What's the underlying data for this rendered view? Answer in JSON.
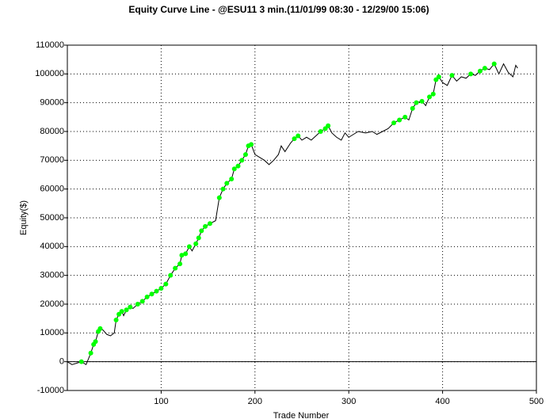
{
  "chart_data": {
    "type": "line",
    "title": "Equity Curve Line - @ESU11 3 min.(11/01/99 08:30 - 12/29/00 15:06)",
    "x_label": "Trade Number",
    "y_label": "Equity($)",
    "xlim": [
      0,
      500
    ],
    "xticks": [
      100,
      200,
      300,
      400,
      500
    ],
    "ylim": [
      -10000,
      110000
    ],
    "yticks": [
      -10000,
      0,
      10000,
      20000,
      30000,
      40000,
      50000,
      60000,
      70000,
      80000,
      90000,
      100000,
      110000
    ],
    "grid": true,
    "series": [
      {
        "color": "#000000",
        "x": [
          0,
          5,
          10,
          15,
          20,
          25,
          28,
          30,
          33,
          35,
          38,
          42,
          46,
          50,
          52,
          55,
          58,
          60,
          63,
          67,
          70,
          75,
          80,
          85,
          90,
          95,
          100,
          105,
          110,
          115,
          120,
          122,
          126,
          130,
          133,
          137,
          140,
          143,
          147,
          152,
          158,
          162,
          166,
          170,
          175,
          178,
          182,
          186,
          190,
          193,
          196,
          200,
          205,
          210,
          215,
          220,
          225,
          228,
          232,
          238,
          242,
          246,
          250,
          255,
          260,
          265,
          270,
          275,
          278,
          282,
          287,
          292,
          296,
          300,
          305,
          310,
          318,
          325,
          330,
          336,
          342,
          348,
          354,
          360,
          364,
          368,
          372,
          378,
          382,
          386,
          390,
          393,
          396,
          400,
          405,
          410,
          415,
          420,
          425,
          430,
          435,
          440,
          445,
          450,
          455,
          460,
          465,
          470,
          475,
          478,
          480
        ],
        "values": [
          0,
          -1000,
          -500,
          0,
          -1000,
          3000,
          6000,
          7000,
          10500,
          11500,
          11000,
          9500,
          9000,
          10000,
          14500,
          16500,
          17500,
          16000,
          18000,
          19000,
          18500,
          20000,
          21000,
          22500,
          23500,
          24500,
          25500,
          27000,
          30000,
          32500,
          34000,
          37000,
          37500,
          40000,
          38500,
          41000,
          43000,
          45500,
          47000,
          48000,
          49000,
          57000,
          60000,
          62000,
          63500,
          67000,
          68000,
          70000,
          72000,
          75000,
          75500,
          72000,
          71000,
          70000,
          68500,
          70000,
          72000,
          75000,
          73000,
          76000,
          77500,
          78500,
          77000,
          78000,
          77000,
          78500,
          80000,
          81000,
          82000,
          79500,
          78000,
          77000,
          79500,
          78000,
          79000,
          80000,
          79500,
          80000,
          79000,
          80000,
          81000,
          83000,
          84000,
          85000,
          84000,
          88000,
          90000,
          90500,
          89000,
          92000,
          93000,
          98000,
          99000,
          97000,
          96000,
          99500,
          97500,
          99000,
          98500,
          100000,
          99500,
          101000,
          102000,
          101500,
          103500,
          100000,
          103500,
          100500,
          99000,
          103000,
          102000
        ]
      },
      {
        "color": "#00ff00",
        "marker": "circle",
        "x": [
          15,
          25,
          28,
          30,
          33,
          35,
          52,
          55,
          58,
          63,
          67,
          75,
          80,
          85,
          90,
          95,
          100,
          105,
          110,
          115,
          120,
          122,
          126,
          130,
          137,
          140,
          143,
          147,
          152,
          162,
          166,
          170,
          175,
          178,
          182,
          186,
          190,
          193,
          196,
          242,
          246,
          270,
          275,
          278,
          348,
          354,
          360,
          368,
          372,
          378,
          386,
          390,
          393,
          396,
          410,
          430,
          440,
          445,
          455
        ],
        "values": [
          0,
          3000,
          6000,
          7000,
          10500,
          11500,
          14500,
          16500,
          17500,
          18000,
          19000,
          20000,
          21000,
          22500,
          23500,
          24500,
          25500,
          27000,
          30000,
          32500,
          34000,
          37000,
          37500,
          40000,
          41000,
          43000,
          45500,
          47000,
          48000,
          57000,
          60000,
          62000,
          63500,
          67000,
          68000,
          70000,
          72000,
          75000,
          75500,
          77500,
          78500,
          80000,
          81000,
          82000,
          83000,
          84000,
          85000,
          88000,
          90000,
          90500,
          92000,
          93000,
          98000,
          99000,
          99500,
          100000,
          101000,
          102000,
          103500
        ]
      }
    ]
  }
}
